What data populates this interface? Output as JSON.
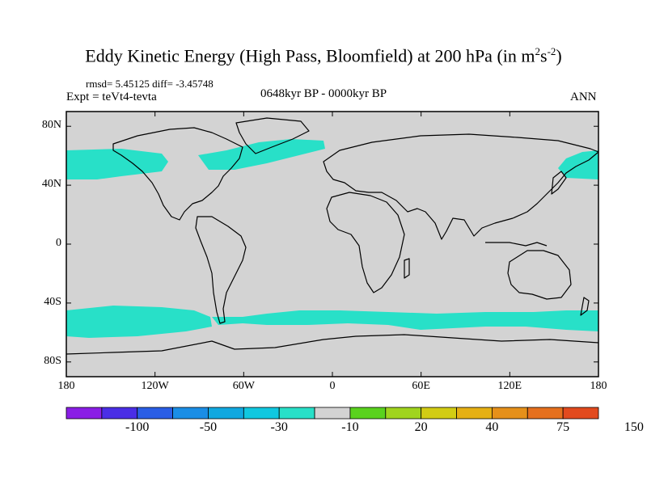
{
  "title": {
    "main": "Eddy Kinetic Energy (High Pass, Bloomfield) at 200 hPa (in m",
    "sup1": "2",
    "mid": "s",
    "sup2": "-2",
    "close": ")"
  },
  "stats": "rmsd= 5.45125 diff= -3.45748",
  "experiment": "Expt = teVt4-tevta",
  "period": "0648kyr BP - 0000kyr BP",
  "season": "ANN",
  "map": {
    "lat_ticks": [
      "80N",
      "40N",
      "0",
      "40S",
      "80S"
    ],
    "lon_ticks": [
      "180",
      "120W",
      "60W",
      "0",
      "60E",
      "120E",
      "180"
    ],
    "lat_range": [
      -90,
      90
    ],
    "lon_range": [
      -180,
      180
    ],
    "background_color": "#d3d3d3"
  },
  "colorbar": {
    "colors": [
      "#8a1ee6",
      "#4a2ee6",
      "#2a5ee6",
      "#1a8ee6",
      "#10a8e0",
      "#10c8e0",
      "#28e0c8",
      "#d3d3d3",
      "#5ad21e",
      "#a0d41e",
      "#d2cc14",
      "#e6b014",
      "#e6901a",
      "#e6701e",
      "#e24a1e"
    ],
    "labels": [
      "-100",
      "-50",
      "-30",
      "-10",
      "20",
      "40",
      "75",
      "150"
    ]
  }
}
